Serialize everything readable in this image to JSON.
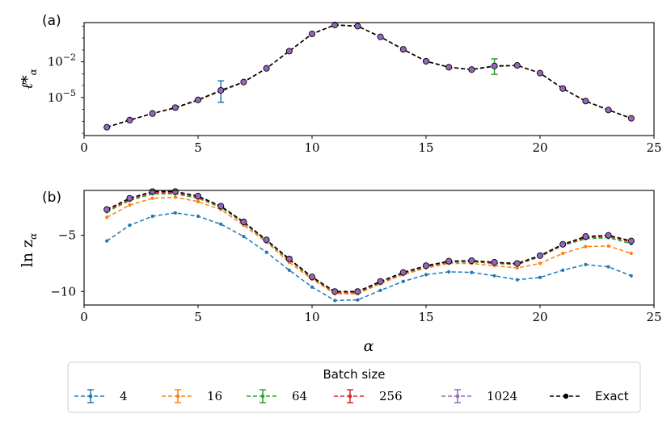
{
  "chart_data": [
    {
      "type": "line",
      "panel_label": "(a)",
      "yscale": "log",
      "ylabel_symbol": "ℓ̄*",
      "ylabel_sub": "α",
      "xlim": [
        0,
        25
      ],
      "ylim_log10": [
        -8.2,
        1.3
      ],
      "xticks": [
        0,
        5,
        10,
        15,
        20,
        25
      ],
      "yticks_log10": [
        -2,
        -5
      ],
      "ytick_labels": [
        "10",
        "10"
      ],
      "ytick_exps": [
        "−2",
        "−5"
      ],
      "x": [
        1,
        2,
        3,
        4,
        5,
        6,
        7,
        8,
        9,
        10,
        11,
        12,
        13,
        14,
        15,
        16,
        17,
        18,
        19,
        20,
        21,
        22,
        23,
        24
      ],
      "series": [
        {
          "name": "4",
          "log10_values": [
            -7.5,
            -6.9,
            -6.35,
            -5.85,
            -5.2,
            -4.5,
            -3.7,
            -2.55,
            -1.1,
            0.35,
            1.1,
            1.0,
            0.1,
            -0.95,
            -1.95,
            -2.45,
            -2.65,
            -2.35,
            -2.3,
            -2.95,
            -4.25,
            -5.3,
            -6.05,
            -6.75
          ],
          "err_log10": [
            0,
            0,
            0,
            0,
            0,
            0.9,
            0,
            0,
            0,
            0,
            0,
            0,
            0,
            0,
            0,
            0,
            0,
            0,
            0,
            0,
            0,
            0,
            0,
            0
          ]
        },
        {
          "name": "16",
          "log10_values": [
            -7.5,
            -6.9,
            -6.35,
            -5.9,
            -5.25,
            -4.45,
            -3.7,
            -2.55,
            -1.1,
            0.35,
            1.1,
            1.0,
            0.1,
            -0.95,
            -1.95,
            -2.45,
            -2.65,
            -2.35,
            -2.3,
            -2.95,
            -4.25,
            -5.3,
            -6.05,
            -6.75
          ],
          "err_log10": [
            0,
            0,
            0,
            0,
            0,
            0,
            0,
            0,
            0,
            0,
            0,
            0,
            0,
            0,
            0,
            0,
            0,
            0,
            0,
            0,
            0,
            0,
            0,
            0
          ]
        },
        {
          "name": "64",
          "log10_values": [
            -7.5,
            -6.9,
            -6.35,
            -5.85,
            -5.2,
            -4.4,
            -3.7,
            -2.55,
            -1.1,
            0.35,
            1.1,
            1.0,
            0.1,
            -0.95,
            -1.95,
            -2.45,
            -2.65,
            -2.4,
            -2.3,
            -2.95,
            -4.25,
            -5.3,
            -6.05,
            -6.75
          ],
          "err_log10": [
            0,
            0,
            0,
            0,
            0,
            0,
            0,
            0,
            0,
            0,
            0,
            0,
            0,
            0,
            0,
            0,
            0,
            0.65,
            0,
            0,
            0,
            0,
            0,
            0
          ]
        },
        {
          "name": "256",
          "log10_values": [
            -7.5,
            -6.9,
            -6.35,
            -5.85,
            -5.2,
            -4.4,
            -3.7,
            -2.55,
            -1.1,
            0.35,
            1.1,
            1.0,
            0.1,
            -0.95,
            -1.95,
            -2.45,
            -2.65,
            -2.35,
            -2.3,
            -2.95,
            -4.25,
            -5.3,
            -6.05,
            -6.75
          ],
          "err_log10": [
            0,
            0,
            0,
            0,
            0,
            0,
            0,
            0,
            0,
            0,
            0,
            0,
            0,
            0,
            0,
            0,
            0,
            0,
            0,
            0,
            0,
            0,
            0,
            0
          ]
        },
        {
          "name": "1024",
          "log10_values": [
            -7.5,
            -6.9,
            -6.35,
            -5.85,
            -5.2,
            -4.4,
            -3.7,
            -2.55,
            -1.1,
            0.35,
            1.1,
            1.0,
            0.1,
            -0.95,
            -1.95,
            -2.45,
            -2.65,
            -2.35,
            -2.3,
            -2.95,
            -4.25,
            -5.3,
            -6.05,
            -6.75
          ],
          "err_log10": [
            0,
            0,
            0,
            0,
            0,
            0,
            0,
            0,
            0,
            0,
            0,
            0,
            0,
            0,
            0,
            0,
            0,
            0,
            0,
            0,
            0,
            0,
            0,
            0
          ]
        },
        {
          "name": "Exact",
          "log10_values": [
            -7.5,
            -6.9,
            -6.35,
            -5.85,
            -5.2,
            -4.4,
            -3.7,
            -2.55,
            -1.1,
            0.35,
            1.1,
            1.0,
            0.1,
            -0.95,
            -1.95,
            -2.45,
            -2.65,
            -2.35,
            -2.3,
            -2.95,
            -4.25,
            -5.3,
            -6.05,
            -6.75
          ],
          "err_log10": [
            0,
            0,
            0,
            0,
            0,
            0,
            0,
            0,
            0,
            0,
            0,
            0,
            0,
            0,
            0,
            0,
            0,
            0,
            0,
            0,
            0,
            0,
            0,
            0
          ]
        }
      ]
    },
    {
      "type": "line",
      "panel_label": "(b)",
      "yscale": "linear",
      "ylabel_symbol": "ln z",
      "ylabel_sub": "α",
      "xlabel": "α",
      "xlim": [
        0,
        25
      ],
      "ylim": [
        -11.2,
        -1.0
      ],
      "xticks": [
        0,
        5,
        10,
        15,
        20,
        25
      ],
      "yticks": [
        -5,
        -10
      ],
      "ytick_labels": [
        "−5",
        "−10"
      ],
      "x": [
        1,
        2,
        3,
        4,
        5,
        6,
        7,
        8,
        9,
        10,
        11,
        12,
        13,
        14,
        15,
        16,
        17,
        18,
        19,
        20,
        21,
        22,
        23,
        24
      ],
      "series": [
        {
          "name": "4",
          "values": [
            -5.5,
            -4.1,
            -3.3,
            -3.0,
            -3.3,
            -4.0,
            -5.1,
            -6.5,
            -8.1,
            -9.6,
            -10.8,
            -10.75,
            -9.9,
            -9.1,
            -8.5,
            -8.25,
            -8.3,
            -8.6,
            -8.95,
            -8.75,
            -8.1,
            -7.6,
            -7.8,
            -8.6
          ]
        },
        {
          "name": "16",
          "values": [
            -3.4,
            -2.3,
            -1.7,
            -1.6,
            -2.0,
            -2.7,
            -4.1,
            -5.6,
            -7.4,
            -8.9,
            -10.2,
            -10.2,
            -9.3,
            -8.5,
            -7.9,
            -7.5,
            -7.5,
            -7.7,
            -7.9,
            -7.5,
            -6.6,
            -6.0,
            -5.95,
            -6.6
          ]
        },
        {
          "name": "64",
          "values": [
            -2.9,
            -1.9,
            -1.3,
            -1.3,
            -1.7,
            -2.5,
            -3.9,
            -5.5,
            -7.2,
            -8.8,
            -10.1,
            -10.1,
            -9.2,
            -8.4,
            -7.8,
            -7.4,
            -7.35,
            -7.5,
            -7.6,
            -6.9,
            -5.9,
            -5.3,
            -5.2,
            -5.75
          ]
        },
        {
          "name": "256",
          "values": [
            -2.8,
            -1.8,
            -1.2,
            -1.2,
            -1.6,
            -2.4,
            -3.85,
            -5.45,
            -7.15,
            -8.75,
            -10.05,
            -10.05,
            -9.15,
            -8.35,
            -7.75,
            -7.35,
            -7.3,
            -7.45,
            -7.55,
            -6.85,
            -5.85,
            -5.2,
            -5.1,
            -5.6
          ]
        },
        {
          "name": "1024",
          "values": [
            -2.7,
            -1.7,
            -1.1,
            -1.1,
            -1.5,
            -2.4,
            -3.8,
            -5.4,
            -7.1,
            -8.7,
            -10.0,
            -10.0,
            -9.1,
            -8.3,
            -7.7,
            -7.3,
            -7.25,
            -7.4,
            -7.5,
            -6.8,
            -5.8,
            -5.1,
            -5.0,
            -5.5
          ]
        },
        {
          "name": "Exact",
          "values": [
            -2.7,
            -1.7,
            -1.1,
            -1.1,
            -1.5,
            -2.4,
            -3.8,
            -5.4,
            -7.1,
            -8.7,
            -10.0,
            -10.0,
            -9.1,
            -8.3,
            -7.7,
            -7.3,
            -7.25,
            -7.4,
            -7.5,
            -6.8,
            -5.8,
            -5.1,
            -5.0,
            -5.5
          ]
        }
      ]
    }
  ],
  "legend": {
    "title": "Batch size",
    "entries": [
      "4",
      "16",
      "64",
      "256",
      "1024",
      "Exact"
    ],
    "colors": [
      "#1f77b4",
      "#ff7f0e",
      "#2ca02c",
      "#d62728",
      "#9467bd",
      "#000000"
    ]
  }
}
